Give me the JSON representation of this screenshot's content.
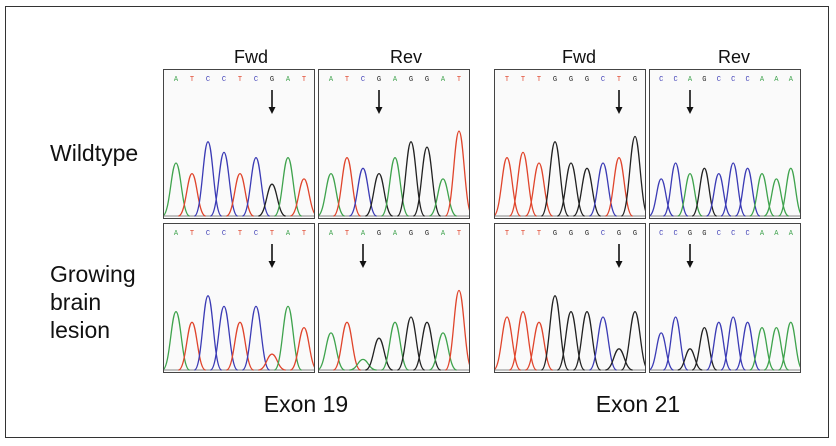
{
  "column_labels": [
    "Fwd",
    "Rev",
    "Fwd",
    "Rev"
  ],
  "row_labels": [
    {
      "lines": [
        "Wildtype"
      ]
    },
    {
      "lines": [
        "Growing",
        "brain",
        "lesion"
      ]
    }
  ],
  "exon_labels": [
    "Exon 19",
    "Exon 21"
  ],
  "base_colors": {
    "A": "#3fa34d",
    "C": "#3b3bb5",
    "G": "#222222",
    "T": "#e0452c"
  },
  "panels": [
    {
      "row": 0,
      "col": 0,
      "sequence": "ATCCTCGAT",
      "arrow_index": 6,
      "peaks": [
        0.5,
        0.4,
        0.7,
        0.6,
        0.4,
        0.55,
        0.3,
        0.55,
        0.35
      ]
    },
    {
      "row": 0,
      "col": 1,
      "sequence": "ATCGAGGAT",
      "arrow_index": 3,
      "peaks": [
        0.4,
        0.55,
        0.45,
        0.4,
        0.55,
        0.7,
        0.65,
        0.35,
        0.8
      ]
    },
    {
      "row": 0,
      "col": 2,
      "sequence": "TTTGGGCTG",
      "arrow_index": 7,
      "peaks": [
        0.55,
        0.6,
        0.5,
        0.7,
        0.5,
        0.45,
        0.5,
        0.55,
        0.75
      ]
    },
    {
      "row": 0,
      "col": 3,
      "sequence": "CCAGCCCAAA",
      "arrow_index": 2,
      "peaks": [
        0.35,
        0.5,
        0.4,
        0.45,
        0.4,
        0.5,
        0.45,
        0.4,
        0.35,
        0.45
      ]
    },
    {
      "row": 1,
      "col": 0,
      "sequence": "ATCCTCTAT",
      "arrow_index": 6,
      "peaks": [
        0.55,
        0.45,
        0.7,
        0.6,
        0.45,
        0.6,
        0.15,
        0.6,
        0.4
      ]
    },
    {
      "row": 1,
      "col": 1,
      "sequence": "ATAGAGGAT",
      "arrow_index": 2,
      "peaks": [
        0.35,
        0.45,
        0.1,
        0.3,
        0.45,
        0.5,
        0.45,
        0.35,
        0.75
      ]
    },
    {
      "row": 1,
      "col": 2,
      "sequence": "TTTGGGCGG",
      "arrow_index": 7,
      "peaks": [
        0.5,
        0.55,
        0.45,
        0.7,
        0.55,
        0.55,
        0.5,
        0.2,
        0.55
      ]
    },
    {
      "row": 1,
      "col": 3,
      "sequence": "CCGGCCCAAA",
      "arrow_index": 2,
      "peaks": [
        0.35,
        0.5,
        0.2,
        0.4,
        0.45,
        0.5,
        0.45,
        0.4,
        0.4,
        0.45
      ]
    }
  ]
}
